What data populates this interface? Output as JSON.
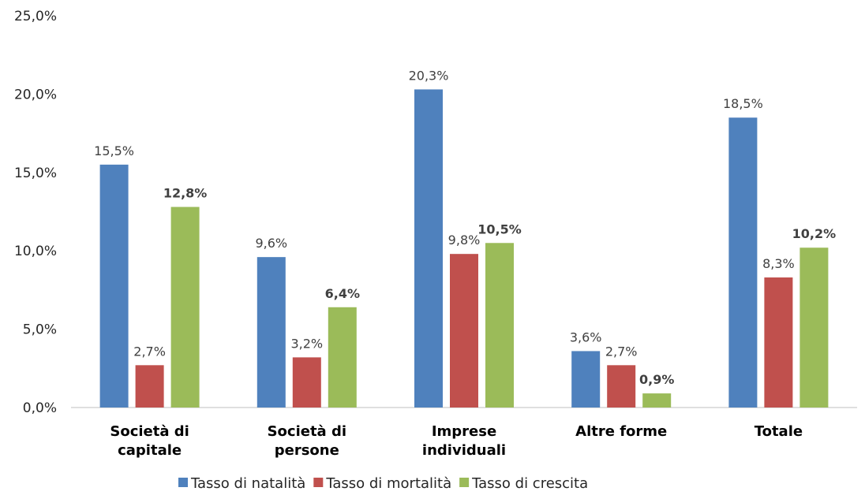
{
  "chart_data": {
    "type": "bar",
    "title": "",
    "xlabel": "",
    "ylabel": "",
    "ylim": [
      0,
      25
    ],
    "yticks": [
      "0,0%",
      "5,0%",
      "10,0%",
      "15,0%",
      "20,0%",
      "25,0%"
    ],
    "grid": false,
    "legend_position": "bottom",
    "categories": [
      [
        "Società di",
        "capitale"
      ],
      [
        "Società di",
        "persone"
      ],
      [
        "Imprese",
        "individuali"
      ],
      [
        "Altre forme"
      ],
      [
        "Totale"
      ]
    ],
    "series": [
      {
        "name": "Tasso di natalità",
        "color": "#4F81BD",
        "values": [
          15.5,
          9.6,
          20.3,
          3.6,
          18.5
        ],
        "labels": [
          "15,5%",
          "9,6%",
          "20,3%",
          "3,6%",
          "18,5%"
        ],
        "bold_labels": false
      },
      {
        "name": "Tasso di mortalità",
        "color": "#C0504D",
        "values": [
          2.7,
          3.2,
          9.8,
          2.7,
          8.3
        ],
        "labels": [
          "2,7%",
          "3,2%",
          "9,8%",
          "2,7%",
          "8,3%"
        ],
        "bold_labels": false
      },
      {
        "name": "Tasso di crescita",
        "color": "#9BBB59",
        "values": [
          12.8,
          6.4,
          10.5,
          0.9,
          10.2
        ],
        "labels": [
          "12,8%",
          "6,4%",
          "10,5%",
          "0,9%",
          "10,2%"
        ],
        "bold_labels": true
      }
    ]
  }
}
